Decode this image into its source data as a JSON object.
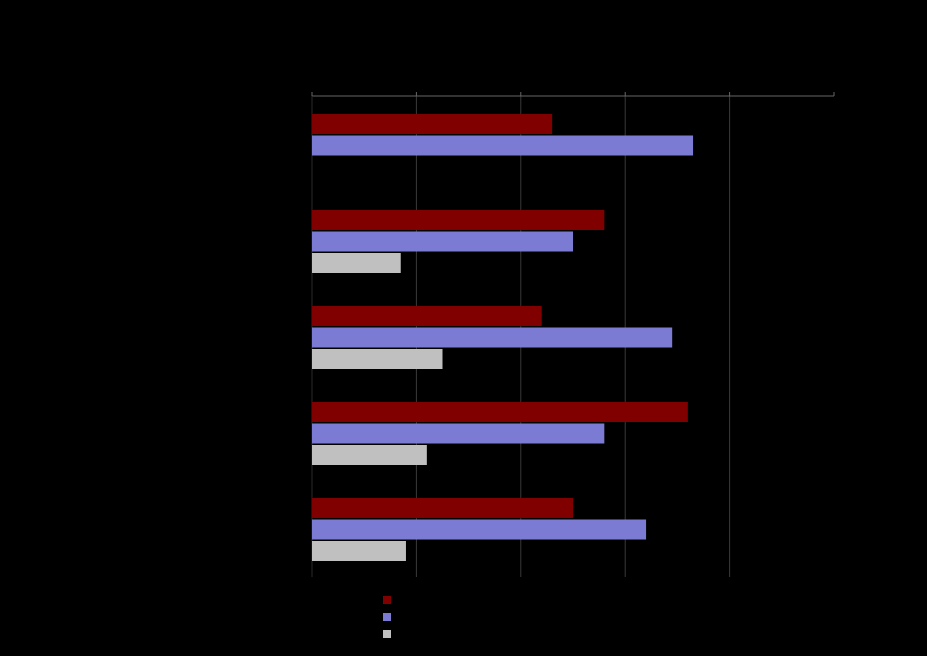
{
  "chart_data": {
    "type": "bar",
    "orientation": "horizontal",
    "title": "",
    "xlabel": "",
    "ylabel": "",
    "categories": [
      "",
      "",
      "",
      "",
      ""
    ],
    "xlim": [
      0,
      5
    ],
    "grid": true,
    "legend_position": "bottom-left",
    "series": [
      {
        "name": "",
        "color": "#800000",
        "values": [
          2.3,
          2.8,
          2.2,
          3.6,
          2.5
        ]
      },
      {
        "name": "",
        "color": "#7B7BD4",
        "values": [
          3.65,
          2.5,
          3.45,
          2.8,
          3.2
        ]
      },
      {
        "name": "",
        "color": "#C0C0C0",
        "values": [
          null,
          0.85,
          1.25,
          1.1,
          0.9
        ]
      }
    ]
  }
}
